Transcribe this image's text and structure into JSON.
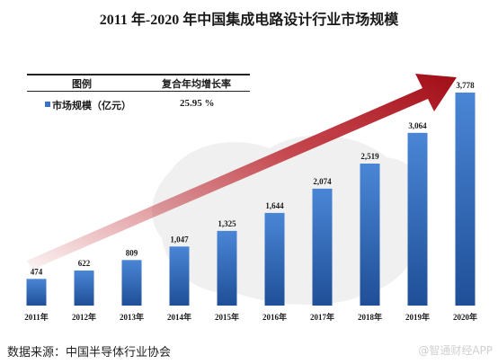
{
  "title": "2011 年-2020 年中国集成电路设计行业市场规模",
  "legend": {
    "header_series": "图例",
    "header_metric": "复合年均增长率",
    "series_label": "市场规模（亿元）",
    "cagr_value": "25.95 %"
  },
  "source_text": "数据来源：中国半导体行业协会",
  "watermark": "@智通财经APP",
  "colors": {
    "bar_top": "#4a86d6",
    "bar_bottom": "#1f4f97",
    "arrow": "#b8101a",
    "label": "#1a1a1a"
  },
  "chart_data": {
    "type": "bar",
    "title": "2011 年-2020 年中国集成电路设计行业市场规模",
    "categories": [
      "2011年",
      "2012年",
      "2013年",
      "2014年",
      "2015年",
      "2016年",
      "2017年",
      "2018年",
      "2019年",
      "2020年"
    ],
    "series": [
      {
        "name": "市场规模（亿元）",
        "values": [
          474,
          622,
          809,
          1047,
          1325,
          1644,
          2074,
          2519,
          3064,
          3778
        ]
      }
    ],
    "data_labels": [
      "474",
      "622",
      "809",
      "1,047",
      "1,325",
      "1,644",
      "2,074",
      "2,519",
      "3,064",
      "3,778"
    ],
    "ylim": [
      0,
      3778
    ],
    "grid": false,
    "legend_position": "top-left"
  }
}
